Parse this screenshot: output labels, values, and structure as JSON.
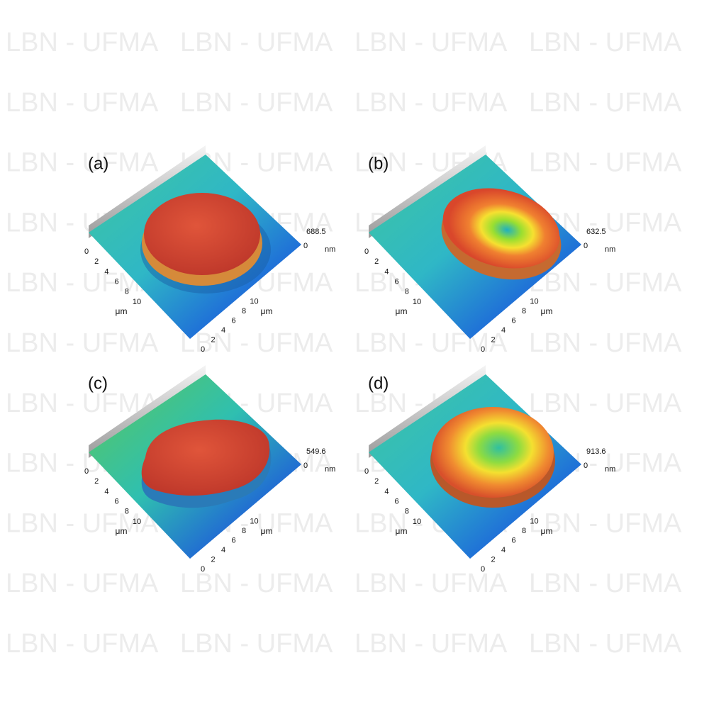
{
  "watermark": "LBN - UFMA",
  "panels": [
    {
      "label": "(a)",
      "z_max": "688.5",
      "z_min": "0",
      "z_unit": "nm",
      "x_axis": {
        "label": "μm",
        "ticks": [
          0,
          2,
          4,
          6,
          8,
          10
        ]
      },
      "y_axis": {
        "label": "μm",
        "ticks": [
          0,
          2,
          4,
          6,
          8,
          10
        ]
      }
    },
    {
      "label": "(b)",
      "z_max": "632.5",
      "z_min": "0",
      "z_unit": "nm",
      "x_axis": {
        "label": "μm",
        "ticks": [
          0,
          2,
          4,
          6,
          8,
          10
        ]
      },
      "y_axis": {
        "label": "μm",
        "ticks": [
          0,
          2,
          4,
          6,
          8,
          10
        ]
      }
    },
    {
      "label": "(c)",
      "z_max": "549.6",
      "z_min": "0",
      "z_unit": "nm",
      "x_axis": {
        "label": "μm",
        "ticks": [
          0,
          2,
          4,
          6,
          8,
          10
        ]
      },
      "y_axis": {
        "label": "μm",
        "ticks": [
          0,
          2,
          4,
          6,
          8,
          10
        ]
      }
    },
    {
      "label": "(d)",
      "z_max": "913.6",
      "z_min": "0",
      "z_unit": "nm",
      "x_axis": {
        "label": "μm",
        "ticks": [
          0,
          2,
          4,
          6,
          8,
          10
        ]
      },
      "y_axis": {
        "label": "μm",
        "ticks": [
          0,
          2,
          4,
          6,
          8,
          10
        ]
      }
    }
  ]
}
